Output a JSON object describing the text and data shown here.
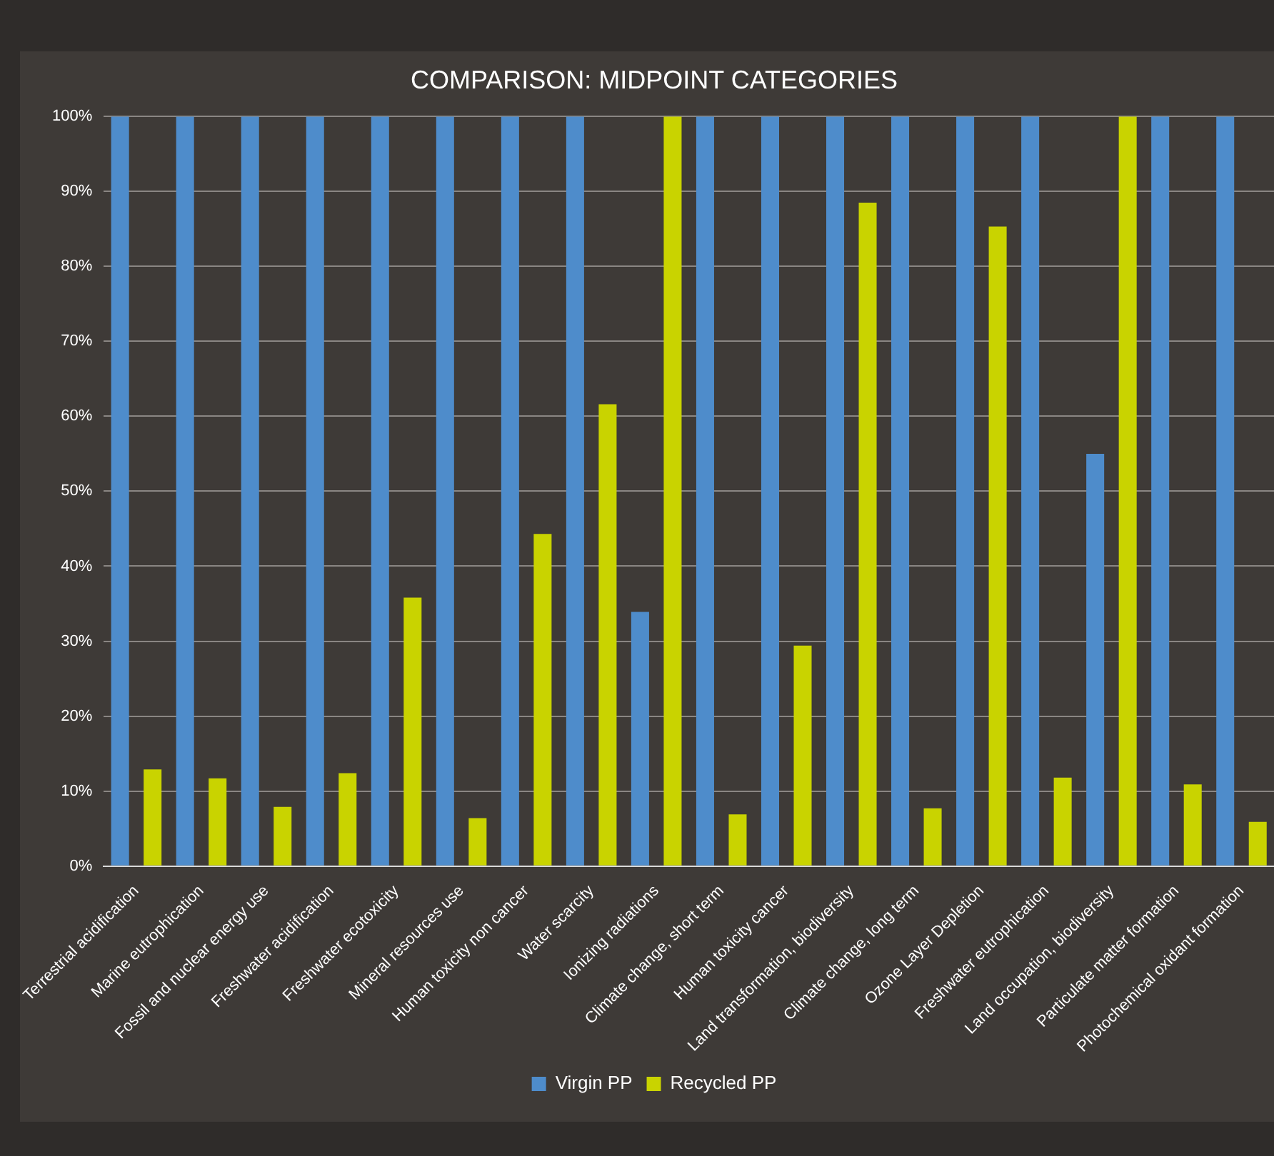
{
  "chart_data": {
    "type": "bar",
    "title": "COMPARISON: MIDPOINT CATEGORIES",
    "categories": [
      "Terrestrial acidification",
      "Marine eutrophication",
      "Fossil and nuclear energy use",
      "Freshwater acidification",
      "Freshwater ecotoxicity",
      "Mineral resources use",
      "Human toxicity non cancer",
      "Water scarcity",
      "Ionizing radiations",
      "Climate change, short term",
      "Human toxicity cancer",
      "Land transformation, biodiversity",
      "Climate change, long term",
      "Ozone Layer Depletion",
      "Freshwater eutrophication",
      "Land occupation, biodiversity",
      "Particulate matter formation",
      "Photochemical oxidant formation"
    ],
    "series": [
      {
        "name": "Virgin PP",
        "color": "#4e8ccb",
        "values": [
          100,
          100,
          100,
          100,
          100,
          100,
          100,
          100,
          33.9,
          100,
          100,
          100,
          100,
          100,
          100,
          55,
          100,
          100
        ]
      },
      {
        "name": "Recycled PP",
        "color": "#c9d300",
        "values": [
          12.9,
          11.7,
          7.9,
          12.4,
          35.8,
          6.4,
          44.3,
          61.6,
          100,
          6.9,
          29.4,
          88.5,
          7.7,
          85.3,
          11.8,
          100,
          10.9,
          5.9
        ]
      }
    ],
    "ylim": [
      0,
      100
    ],
    "yticks": [
      {
        "value": 0,
        "label": "0%"
      },
      {
        "value": 10,
        "label": "10%"
      },
      {
        "value": 20,
        "label": "20%"
      },
      {
        "value": 30,
        "label": "30%"
      },
      {
        "value": 40,
        "label": "40%"
      },
      {
        "value": 50,
        "label": "50%"
      },
      {
        "value": 60,
        "label": "60%"
      },
      {
        "value": 70,
        "label": "70%"
      },
      {
        "value": 80,
        "label": "80%"
      },
      {
        "value": 90,
        "label": "90%"
      },
      {
        "value": 100,
        "label": "100%"
      }
    ],
    "grid": "y",
    "legend": "bottom"
  }
}
